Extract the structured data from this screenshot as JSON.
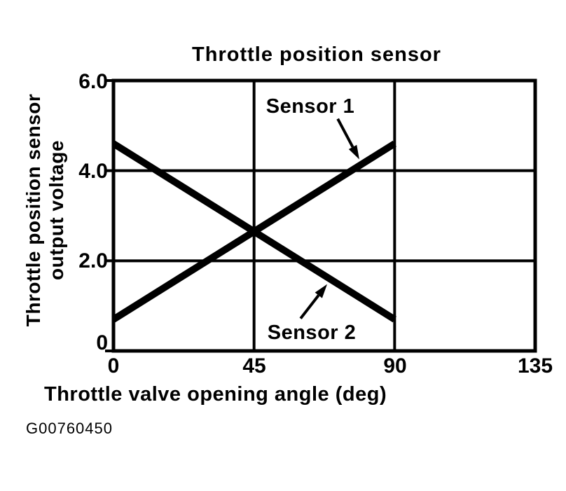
{
  "figure_code": "G00760450",
  "colors": {
    "ink": "#000000",
    "background": "#ffffff"
  },
  "chart_data": {
    "type": "line",
    "title": "Throttle position sensor",
    "xlabel": "Throttle valve opening angle (deg)",
    "ylabel": "Throttle position sensor output voltage",
    "ylabel_lines": [
      "Throttle position sensor",
      "output voltage"
    ],
    "xlim": [
      0,
      135
    ],
    "ylim": [
      0,
      6.0
    ],
    "grid": true,
    "x_gridlines": [
      45,
      90
    ],
    "y_gridlines": [
      2.0,
      4.0
    ],
    "xticks": {
      "values": [
        0,
        45,
        90,
        135
      ],
      "labels": [
        "0",
        "45",
        "90",
        "135"
      ]
    },
    "yticks": {
      "values": [
        0,
        2.0,
        4.0,
        6.0
      ],
      "labels": [
        "0",
        "2.0",
        "4.0",
        "6.0"
      ]
    },
    "legend_position": "inline-annotations",
    "series": [
      {
        "name": "Sensor 1",
        "x": [
          0,
          90
        ],
        "y": [
          0.7,
          4.6
        ],
        "color": "#000000"
      },
      {
        "name": "Sensor 2",
        "x": [
          0,
          90
        ],
        "y": [
          4.6,
          0.7
        ],
        "color": "#000000"
      }
    ],
    "annotations": [
      {
        "label": "Sensor 1",
        "arrow_from": [
          71.8,
          5.15
        ],
        "arrow_to": [
          78.7,
          4.25
        ]
      },
      {
        "label": "Sensor 2",
        "arrow_from": [
          59.9,
          0.72
        ],
        "arrow_to": [
          68.4,
          1.48
        ]
      }
    ]
  }
}
